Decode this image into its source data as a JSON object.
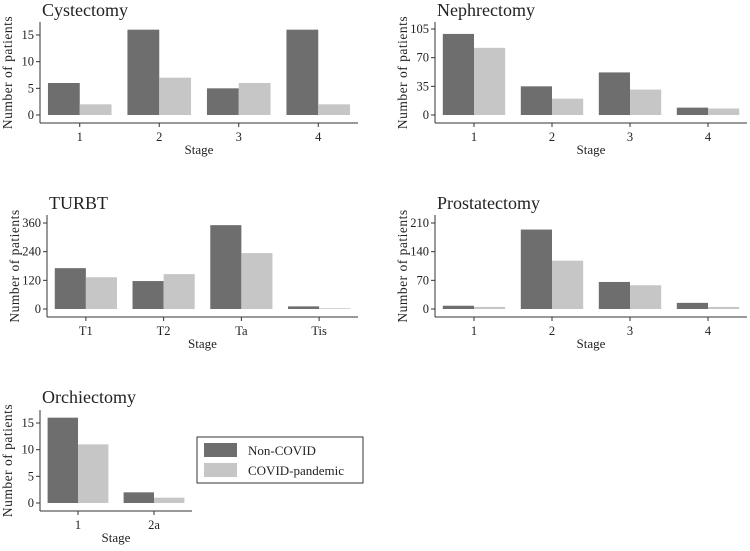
{
  "colors": {
    "non_covid": "#6e6e6e",
    "covid_pandemic": "#c6c6c6",
    "axis": "#333333"
  },
  "legend": {
    "placement": "right of Orchiectomy panel",
    "entries": [
      "Non-COVID",
      "COVID-pandemic"
    ]
  },
  "chart_data": [
    {
      "type": "bar",
      "title": "Cystectomy",
      "xlabel": "Stage",
      "ylabel": "Number of patients",
      "categories": [
        "1",
        "2",
        "3",
        "4"
      ],
      "ylim": [
        0,
        17
      ],
      "yticks": [
        0,
        5,
        10,
        15
      ],
      "series": [
        {
          "name": "Non-COVID",
          "values": [
            6,
            16,
            5,
            16
          ]
        },
        {
          "name": "COVID-pandemic",
          "values": [
            2,
            7,
            6,
            2
          ]
        }
      ]
    },
    {
      "type": "bar",
      "title": "Nephrectomy",
      "xlabel": "Stage",
      "ylabel": "Number of patients",
      "categories": [
        "1",
        "2",
        "3",
        "4"
      ],
      "ylim": [
        0,
        112
      ],
      "yticks": [
        0,
        35,
        70,
        105
      ],
      "series": [
        {
          "name": "Non-COVID",
          "values": [
            99,
            35,
            52,
            9
          ]
        },
        {
          "name": "COVID-pandemic",
          "values": [
            82,
            20,
            31,
            8
          ]
        }
      ]
    },
    {
      "type": "bar",
      "title": "TURBT",
      "xlabel": "Stage",
      "ylabel": "Number of patients",
      "categories": [
        "T1",
        "T2",
        "Ta",
        "Tis"
      ],
      "ylim": [
        0,
        380
      ],
      "yticks": [
        0,
        120,
        240,
        360
      ],
      "series": [
        {
          "name": "Non-COVID",
          "values": [
            171,
            117,
            351,
            11
          ]
        },
        {
          "name": "COVID-pandemic",
          "values": [
            133,
            146,
            234,
            3
          ]
        }
      ]
    },
    {
      "type": "bar",
      "title": "Prostatectomy",
      "xlabel": "Stage",
      "ylabel": "Number of patients",
      "categories": [
        "1",
        "2",
        "3",
        "4"
      ],
      "ylim": [
        0,
        222
      ],
      "yticks": [
        0,
        70,
        140,
        210
      ],
      "series": [
        {
          "name": "Non-COVID",
          "values": [
            8,
            194,
            66,
            15
          ]
        },
        {
          "name": "COVID-pandemic",
          "values": [
            5,
            118,
            58,
            5
          ]
        }
      ]
    },
    {
      "type": "bar",
      "title": "Orchiectomy",
      "xlabel": "Stage",
      "ylabel": "Number of patients",
      "categories": [
        "1",
        "2a"
      ],
      "ylim": [
        0,
        17
      ],
      "yticks": [
        0,
        5,
        10,
        15
      ],
      "series": [
        {
          "name": "Non-COVID",
          "values": [
            16,
            2
          ]
        },
        {
          "name": "COVID-pandemic",
          "values": [
            11,
            1
          ]
        }
      ]
    }
  ]
}
